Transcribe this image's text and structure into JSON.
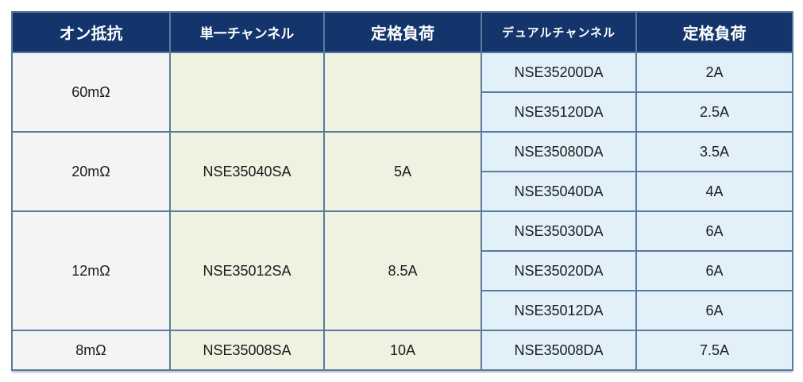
{
  "table": {
    "header": {
      "on_resistance": "オン抵抗",
      "single_channel": "単一チャンネル",
      "single_rated_load": "定格負荷",
      "dual_channel": "デュアルチャンネル",
      "dual_rated_load": "定格負荷"
    },
    "groups": [
      {
        "resistance": "60mΩ",
        "single_part": "",
        "single_load": "",
        "dual": [
          {
            "part": "NSE35200DA",
            "load": "2A"
          },
          {
            "part": "NSE35120DA",
            "load": "2.5A"
          }
        ]
      },
      {
        "resistance": "20mΩ",
        "single_part": "NSE35040SA",
        "single_load": "5A",
        "dual": [
          {
            "part": "NSE35080DA",
            "load": "3.5A"
          },
          {
            "part": "NSE35040DA",
            "load": "4A"
          }
        ]
      },
      {
        "resistance": "12mΩ",
        "single_part": "NSE35012SA",
        "single_load": "8.5A",
        "dual": [
          {
            "part": "NSE35030DA",
            "load": "6A"
          },
          {
            "part": "NSE35020DA",
            "load": "6A"
          },
          {
            "part": "NSE35012DA",
            "load": "6A"
          }
        ]
      },
      {
        "resistance": "8mΩ",
        "single_part": "NSE35008SA",
        "single_load": "10A",
        "dual": [
          {
            "part": "NSE35008DA",
            "load": "7.5A"
          }
        ]
      }
    ],
    "colors": {
      "header_bg": "#14356b",
      "header_text": "#ffffff",
      "resistance_col_bg": "#f4f4f5",
      "single_col_bg": "#eef2e1",
      "dual_col_bg": "#e2f1f9",
      "border": "#5a7a9e",
      "body_text": "#1c1c1c"
    }
  }
}
